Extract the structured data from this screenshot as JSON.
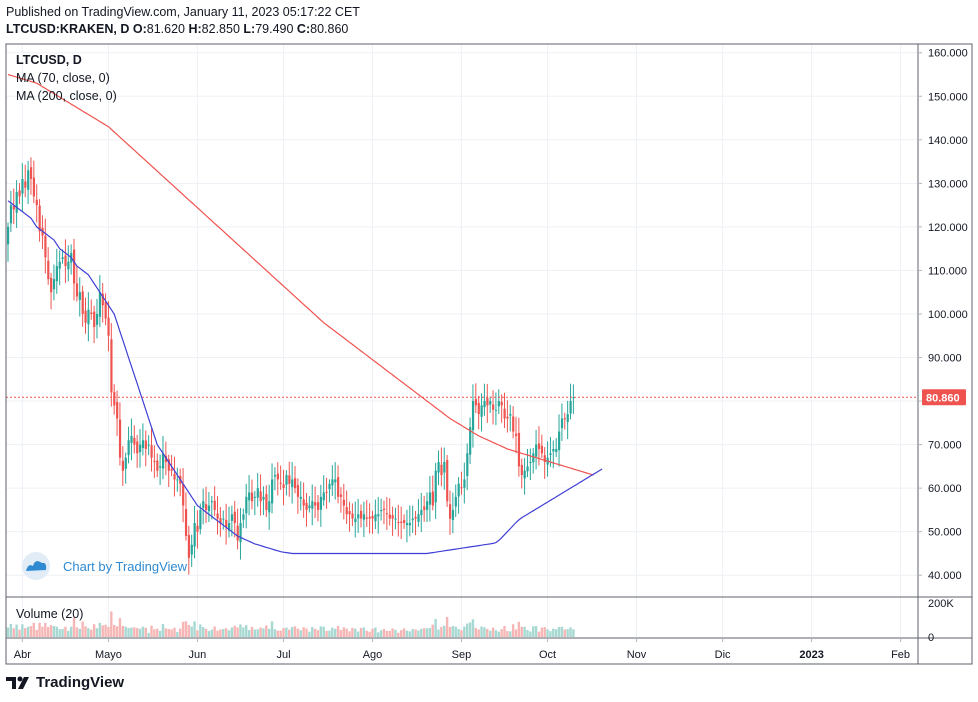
{
  "header": {
    "published": "Published on TradingView.com, January 11, 2023 05:17:22 CET",
    "symbol": "LTCUSD:KRAKEN, D",
    "open_label": "O:",
    "open": "81.620",
    "high_label": "H:",
    "high": "82.850",
    "low_label": "L:",
    "low": "79.490",
    "close_label": "C:",
    "close": "80.860"
  },
  "legend": {
    "title": "LTCUSD, D",
    "ma70": "MA (70, close, 0)",
    "ma200": "MA (200, close, 0)",
    "volume": "Volume (20)"
  },
  "watermark": "Chart by TradingView",
  "footer": "TradingView",
  "colors": {
    "up": "#26a69a",
    "down": "#ef5350",
    "up_vol": "#a7d8d2",
    "down_vol": "#f6b6b5",
    "ma70": "#3f3fd6",
    "ma200": "#ef5350",
    "price_tag": "#ef5350",
    "grid": "#eef1f6",
    "axis_text": "#131722"
  },
  "chart_data": {
    "type": "candlestick",
    "title": "LTCUSD, D",
    "xlabel": "",
    "ylabel": "",
    "ylim": [
      35,
      162
    ],
    "volume_ylim_thousands": [
      0,
      230
    ],
    "y_ticks": [
      "160.000",
      "150.000",
      "140.000",
      "130.000",
      "120.000",
      "110.000",
      "100.000",
      "90.000",
      "80.000",
      "70.000",
      "60.000",
      "50.000",
      "40.000"
    ],
    "volume_ticks": [
      "200K",
      "0"
    ],
    "x_ticks": [
      {
        "label": "Abr",
        "day": 5
      },
      {
        "label": "Mayo",
        "day": 35
      },
      {
        "label": "Jun",
        "day": 66
      },
      {
        "label": "Jul",
        "day": 96
      },
      {
        "label": "Ago",
        "day": 127
      },
      {
        "label": "Sep",
        "day": 158
      },
      {
        "label": "Oct",
        "day": 188
      },
      {
        "label": "Nov",
        "day": 219
      },
      {
        "label": "Dic",
        "day": 249
      },
      {
        "label": "2023",
        "day": 280
      },
      {
        "label": "Feb",
        "day": 311
      }
    ],
    "last_price": 80.86,
    "last_price_label": "80.860",
    "ma70_label": "MA (70, close, 0)",
    "ma200_label": "MA (200, close, 0)",
    "volume_label": "Volume (20)",
    "closes": [
      120,
      125,
      124,
      128,
      127,
      131,
      129,
      133,
      131,
      127,
      125,
      119,
      118,
      113,
      108,
      105,
      108,
      111,
      112,
      113,
      111,
      112,
      114,
      107,
      104,
      105,
      100,
      98,
      101,
      100,
      97,
      100,
      105,
      102,
      99,
      95,
      82,
      79,
      76,
      67,
      64,
      67,
      71,
      72,
      70,
      68,
      70,
      71,
      69,
      70,
      67,
      66,
      64,
      65,
      68,
      66,
      64,
      64,
      62,
      62,
      61,
      56,
      49,
      44,
      47,
      52,
      50,
      55,
      57,
      55,
      56,
      57,
      55,
      53,
      52,
      53,
      51,
      52,
      54,
      52,
      48,
      52,
      54,
      58,
      59,
      57,
      58,
      60,
      57,
      58,
      55,
      57,
      62,
      63,
      62,
      61,
      60,
      63,
      61,
      62,
      60,
      58,
      58,
      56,
      55,
      56,
      57,
      56,
      55,
      58,
      59,
      59,
      61,
      62,
      62,
      58,
      58,
      56,
      54,
      54,
      53,
      53,
      54,
      53,
      54,
      53,
      53,
      53,
      54,
      54,
      55,
      55,
      54,
      53,
      53,
      53,
      52,
      52,
      52,
      52,
      52,
      53,
      53,
      54,
      55,
      55,
      57,
      59,
      56,
      64,
      66,
      63,
      66,
      57,
      53,
      55,
      58,
      61,
      60,
      62,
      68,
      74,
      80,
      79,
      77,
      79,
      80,
      79,
      80,
      78,
      78,
      80,
      79,
      76,
      76,
      77,
      73,
      72,
      65,
      63,
      64,
      65,
      66,
      68,
      70,
      69,
      68,
      66,
      67,
      68,
      69,
      69,
      73,
      76,
      76,
      77,
      80,
      80.86
    ],
    "ma70": [
      126,
      125.5,
      125,
      124.5,
      124,
      123.5,
      123,
      122.5,
      122,
      121,
      120,
      119.5,
      119,
      118.5,
      118,
      117.5,
      117,
      116,
      115,
      114.5,
      114,
      113.5,
      113,
      112,
      111,
      110.5,
      110,
      109.5,
      109,
      108,
      107,
      106,
      105,
      104,
      103,
      102,
      101,
      100,
      98,
      96,
      94,
      92,
      90,
      88,
      86,
      84,
      82,
      80,
      78,
      76,
      74,
      72,
      70,
      69,
      68,
      67,
      66,
      65,
      64,
      63,
      62,
      61,
      60,
      59,
      58,
      57,
      56,
      55.5,
      55,
      54.5,
      54,
      53.5,
      53,
      52.5,
      52,
      51.5,
      51,
      50.5,
      50,
      49.5,
      49,
      48.7,
      48.4,
      48.1,
      47.8,
      47.5,
      47.2,
      47,
      46.8,
      46.6,
      46.4,
      46.2,
      46,
      45.8,
      45.6,
      45.4,
      45.3,
      45.2,
      45.1,
      45,
      45,
      45,
      45,
      45,
      45,
      45,
      45,
      45,
      45,
      45,
      45,
      45,
      45,
      45,
      45,
      45,
      45,
      45,
      45,
      45,
      45,
      45,
      45,
      45,
      45,
      45,
      45,
      45,
      45,
      45,
      45,
      45,
      45,
      45,
      45,
      45,
      45,
      45,
      45,
      45,
      45,
      45,
      45,
      45,
      45,
      45,
      45,
      45.1,
      45.2,
      45.3,
      45.4,
      45.5,
      45.6,
      45.7,
      45.8,
      45.9,
      46,
      46.1,
      46.2,
      46.3,
      46.4,
      46.5,
      46.6,
      46.7,
      46.8,
      46.9,
      47,
      47.1,
      47.2,
      47.3,
      47.5,
      48,
      48.6,
      49.3,
      50,
      50.7,
      51.4,
      52.1,
      52.7,
      53.2,
      53.6,
      54,
      54.4,
      54.8,
      55.2,
      55.6,
      56,
      56.4,
      56.8,
      57.2,
      57.6,
      58,
      58.4,
      58.8,
      59.2,
      59.6,
      60,
      60.4,
      60.8,
      61.2,
      61.6,
      62,
      62.4,
      62.8,
      63.2,
      63.6,
      64,
      64.4
    ],
    "ma200": [
      155,
      154.8,
      154.6,
      154.4,
      154.2,
      154,
      153.8,
      153.6,
      153.4,
      153.2,
      153,
      152.6,
      152.2,
      151.8,
      151.4,
      151,
      150.6,
      150.2,
      149.8,
      149.4,
      149,
      148.6,
      148.2,
      147.8,
      147.4,
      147,
      146.6,
      146.2,
      145.8,
      145.4,
      145,
      144.6,
      144.2,
      143.8,
      143.4,
      143,
      142.4,
      141.8,
      141.2,
      140.6,
      140,
      139.4,
      138.8,
      138.2,
      137.6,
      137,
      136.4,
      135.8,
      135.2,
      134.6,
      134,
      133.4,
      132.8,
      132.2,
      131.6,
      131,
      130.4,
      129.8,
      129.2,
      128.6,
      128,
      127.4,
      126.8,
      126.2,
      125.6,
      125,
      124.4,
      123.8,
      123.2,
      122.6,
      122,
      121.4,
      120.8,
      120.2,
      119.6,
      119,
      118.4,
      117.8,
      117.2,
      116.6,
      116,
      115.4,
      114.8,
      114.2,
      113.6,
      113,
      112.4,
      111.8,
      111.2,
      110.6,
      110,
      109.4,
      108.8,
      108.2,
      107.6,
      107,
      106.4,
      105.8,
      105.2,
      104.6,
      104,
      103.4,
      102.8,
      102.2,
      101.6,
      101,
      100.4,
      99.8,
      99.2,
      98.6,
      98,
      97.5,
      97,
      96.5,
      96,
      95.5,
      95,
      94.5,
      94,
      93.5,
      93,
      92.5,
      92,
      91.5,
      91,
      90.5,
      90,
      89.5,
      89,
      88.5,
      88,
      87.5,
      87,
      86.5,
      86,
      85.5,
      85,
      84.5,
      84,
      83.5,
      83,
      82.5,
      82,
      81.5,
      81,
      80.5,
      80,
      79.5,
      79,
      78.5,
      78,
      77.5,
      77,
      76.5,
      76,
      75.6,
      75.2,
      74.8,
      74.4,
      74,
      73.6,
      73.2,
      72.8,
      72.4,
      72,
      71.7,
      71.4,
      71.1,
      70.8,
      70.5,
      70.2,
      69.9,
      69.6,
      69.3,
      69,
      68.8,
      68.6,
      68.4,
      68.2,
      68,
      67.8,
      67.6,
      67.4,
      67.2,
      67,
      66.8,
      66.6,
      66.4,
      66.2,
      66,
      65.8,
      65.6,
      65.4,
      65.2,
      65,
      64.8,
      64.6,
      64.4,
      64.2,
      64,
      63.8,
      63.6,
      63.4,
      63.2,
      63
    ]
  }
}
